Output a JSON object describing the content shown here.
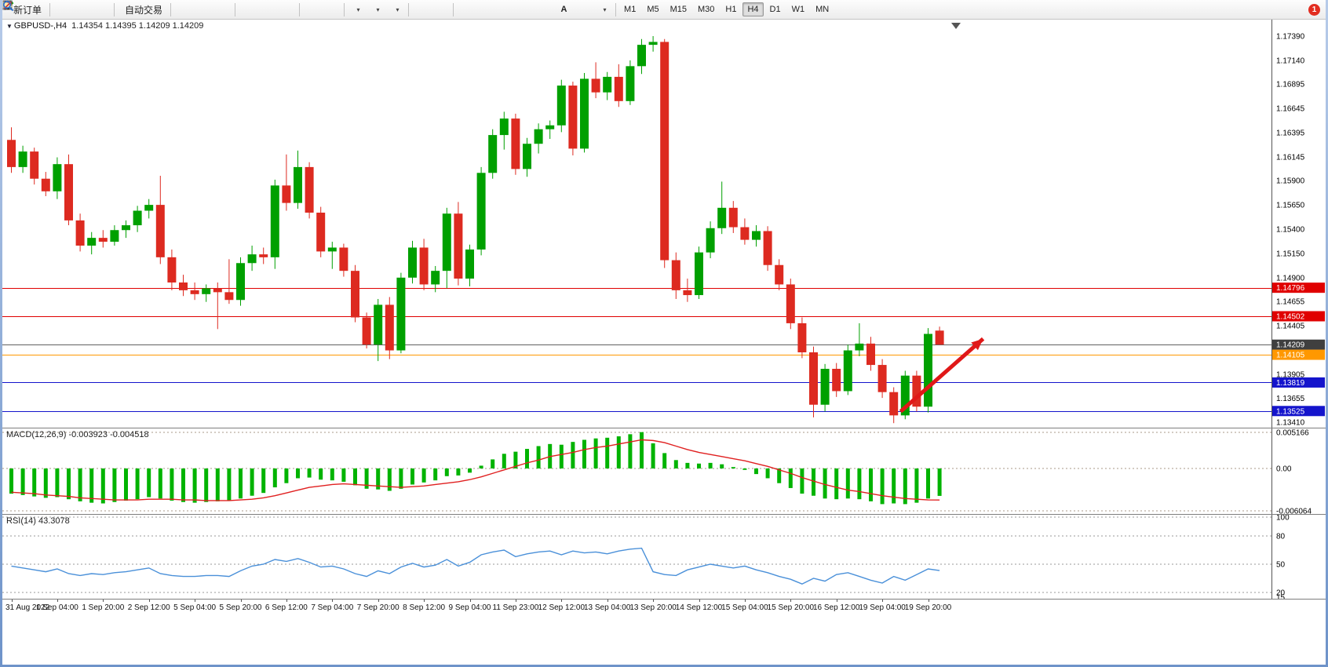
{
  "toolbar": {
    "groups": [
      {
        "items": [
          {
            "name": "new-order",
            "icon": "neworder",
            "label": "新订单"
          }
        ]
      },
      {
        "items": [
          {
            "name": "metaeditor",
            "icon": "metaeditor"
          },
          {
            "name": "community",
            "icon": "community"
          },
          {
            "name": "web-terminal",
            "icon": "web"
          }
        ]
      },
      {
        "items": [
          {
            "name": "autotrading",
            "icon": "autotrading",
            "label": "自动交易"
          }
        ]
      },
      {
        "items": [
          {
            "name": "bar-chart",
            "icon": "barchart"
          },
          {
            "name": "candlestick-chart",
            "icon": "candlechart"
          },
          {
            "name": "line-chart",
            "icon": "linechart"
          }
        ]
      },
      {
        "items": [
          {
            "name": "zoom-in",
            "icon": "zoomin"
          },
          {
            "name": "zoom-out",
            "icon": "zoomout"
          },
          {
            "name": "tile-windows",
            "icon": "tile"
          }
        ]
      },
      {
        "items": [
          {
            "name": "new-chart",
            "icon": "newchart"
          },
          {
            "name": "chart-profiles",
            "icon": "profiles"
          }
        ]
      },
      {
        "items": [
          {
            "name": "indicators",
            "icon": "indicators",
            "dropdown": true
          },
          {
            "name": "periods",
            "icon": "periods",
            "dropdown": true
          },
          {
            "name": "templates",
            "icon": "templates",
            "dropdown": true
          }
        ]
      },
      {
        "items": [
          {
            "name": "cursor",
            "icon": "cursor"
          },
          {
            "name": "crosshair",
            "icon": "crosshair"
          }
        ]
      },
      {
        "items": [
          {
            "name": "vertical-line",
            "icon": "vline"
          },
          {
            "name": "horizontal-line",
            "icon": "hline"
          },
          {
            "name": "trendline",
            "icon": "trend"
          },
          {
            "name": "equidistant-channel",
            "icon": "channel"
          },
          {
            "name": "fibonacci",
            "icon": "fibo"
          },
          {
            "name": "text",
            "icon": "textA"
          },
          {
            "name": "text-label",
            "icon": "label"
          },
          {
            "name": "arrows",
            "icon": "arrows",
            "dropdown": true
          }
        ]
      }
    ],
    "timeframes": [
      "M1",
      "M5",
      "M15",
      "M30",
      "H1",
      "H4",
      "D1",
      "W1",
      "MN"
    ],
    "active_timeframe": "H4",
    "notification_count": "1"
  },
  "chart": {
    "symbol_period": "GBPUSD-,H4",
    "ohlc_text": "1.14354 1.14395 1.14209 1.14209"
  },
  "chart_data": {
    "type": "candlestick",
    "symbol": "GBPUSD-",
    "timeframe": "H4",
    "ohlc_display": {
      "open": "1.14354",
      "high": "1.14395",
      "low": "1.14209",
      "close": "1.14209"
    },
    "up_color": "#00a000",
    "down_color": "#dd2a20",
    "price_axis": {
      "min": 1.1341,
      "max": 1.1739,
      "ticks": [
        "1.17390",
        "1.17140",
        "1.16895",
        "1.16645",
        "1.16395",
        "1.16145",
        "1.15900",
        "1.15650",
        "1.15400",
        "1.15150",
        "1.14900",
        "1.14655",
        "1.14405",
        "1.13905",
        "1.13655",
        "1.13410"
      ]
    },
    "levels": [
      {
        "price": 1.14796,
        "label": "1.14796",
        "color": "#e00000",
        "label_bg": "#e00000"
      },
      {
        "price": 1.14502,
        "label": "1.14502",
        "color": "#e00000",
        "label_bg": "#e00000"
      },
      {
        "price": 1.14209,
        "label": "1.14209",
        "color": "#606060",
        "label_bg": "#3f3f3f"
      },
      {
        "price": 1.14105,
        "label": "1.14105",
        "color": "#ff9800",
        "label_bg": "#ff9800"
      },
      {
        "price": 1.13819,
        "label": "1.13819",
        "color": "#1414cc",
        "label_bg": "#1414cc"
      },
      {
        "price": 1.13525,
        "label": "1.13525",
        "color": "#1414cc",
        "label_bg": "#1414cc"
      }
    ],
    "arrow": {
      "from_candle": 77.6,
      "from_price": 1.1352,
      "to_candle": 84.8,
      "to_price": 1.1427,
      "color": "#e01818"
    },
    "candles": [
      [
        1.1632,
        1.1645,
        1.1598,
        1.1604
      ],
      [
        1.1604,
        1.1626,
        1.1598,
        1.162
      ],
      [
        1.162,
        1.1624,
        1.1586,
        1.1592
      ],
      [
        1.1592,
        1.1599,
        1.1574,
        1.1579
      ],
      [
        1.1579,
        1.1614,
        1.1571,
        1.1607
      ],
      [
        1.1607,
        1.1617,
        1.1544,
        1.1549
      ],
      [
        1.1549,
        1.1556,
        1.1517,
        1.1523
      ],
      [
        1.1523,
        1.1537,
        1.1514,
        1.1531
      ],
      [
        1.1531,
        1.1539,
        1.1521,
        1.1527
      ],
      [
        1.1527,
        1.1544,
        1.1523,
        1.1539
      ],
      [
        1.1539,
        1.1549,
        1.1531,
        1.1544
      ],
      [
        1.1544,
        1.1564,
        1.1537,
        1.1559
      ],
      [
        1.1559,
        1.1571,
        1.1551,
        1.1565
      ],
      [
        1.1565,
        1.1595,
        1.1504,
        1.1511
      ],
      [
        1.1511,
        1.1519,
        1.1477,
        1.1485
      ],
      [
        1.1485,
        1.1493,
        1.1471,
        1.1477
      ],
      [
        1.1477,
        1.1485,
        1.1467,
        1.1473
      ],
      [
        1.1473,
        1.1483,
        1.1465,
        1.1479
      ],
      [
        1.1479,
        1.1485,
        1.1437,
        1.1475
      ],
      [
        1.1475,
        1.1509,
        1.1463,
        1.1467
      ],
      [
        1.1467,
        1.1511,
        1.1461,
        1.1505
      ],
      [
        1.1505,
        1.1523,
        1.1497,
        1.1514
      ],
      [
        1.1514,
        1.1521,
        1.1504,
        1.1511
      ],
      [
        1.1511,
        1.1591,
        1.1499,
        1.1585
      ],
      [
        1.1585,
        1.1617,
        1.1559,
        1.1567
      ],
      [
        1.1567,
        1.1621,
        1.1561,
        1.1604
      ],
      [
        1.1604,
        1.1609,
        1.1551,
        1.1557
      ],
      [
        1.1557,
        1.1563,
        1.1511,
        1.1517
      ],
      [
        1.1517,
        1.1527,
        1.1499,
        1.1521
      ],
      [
        1.1521,
        1.1525,
        1.1491,
        1.1497
      ],
      [
        1.1497,
        1.1503,
        1.1444,
        1.1449
      ],
      [
        1.1449,
        1.1454,
        1.1417,
        1.1421
      ],
      [
        1.1421,
        1.1468,
        1.1404,
        1.1462
      ],
      [
        1.1462,
        1.147,
        1.1406,
        1.1415
      ],
      [
        1.1415,
        1.1495,
        1.1412,
        1.149
      ],
      [
        1.149,
        1.1528,
        1.1484,
        1.1521
      ],
      [
        1.1521,
        1.153,
        1.1477,
        1.1483
      ],
      [
        1.1483,
        1.1502,
        1.1475,
        1.1497
      ],
      [
        1.1497,
        1.1562,
        1.1479,
        1.1556
      ],
      [
        1.1556,
        1.1568,
        1.1482,
        1.1489
      ],
      [
        1.1489,
        1.1524,
        1.1481,
        1.1519
      ],
      [
        1.1519,
        1.1604,
        1.1513,
        1.1598
      ],
      [
        1.1598,
        1.1643,
        1.1592,
        1.1637
      ],
      [
        1.1637,
        1.1661,
        1.1622,
        1.1654
      ],
      [
        1.1654,
        1.1659,
        1.1596,
        1.1602
      ],
      [
        1.1602,
        1.1634,
        1.1594,
        1.1628
      ],
      [
        1.1628,
        1.1649,
        1.1618,
        1.1643
      ],
      [
        1.1643,
        1.1652,
        1.1633,
        1.1647
      ],
      [
        1.1647,
        1.1694,
        1.164,
        1.1688
      ],
      [
        1.1688,
        1.1692,
        1.1616,
        1.1623
      ],
      [
        1.1623,
        1.1701,
        1.1619,
        1.1695
      ],
      [
        1.1695,
        1.1712,
        1.1675,
        1.1681
      ],
      [
        1.1681,
        1.1702,
        1.1673,
        1.1697
      ],
      [
        1.1697,
        1.171,
        1.1666,
        1.1672
      ],
      [
        1.1672,
        1.1714,
        1.1668,
        1.1708
      ],
      [
        1.1708,
        1.1736,
        1.17,
        1.173
      ],
      [
        1.173,
        1.1739,
        1.1723,
        1.1733
      ],
      [
        1.1733,
        1.1736,
        1.15,
        1.1508
      ],
      [
        1.1508,
        1.1516,
        1.1468,
        1.1477
      ],
      [
        1.1477,
        1.1489,
        1.1465,
        1.1472
      ],
      [
        1.1472,
        1.1522,
        1.1468,
        1.1516
      ],
      [
        1.1516,
        1.1548,
        1.151,
        1.1541
      ],
      [
        1.1541,
        1.1589,
        1.1535,
        1.1562
      ],
      [
        1.1562,
        1.1569,
        1.1536,
        1.1542
      ],
      [
        1.1542,
        1.1551,
        1.1524,
        1.1529
      ],
      [
        1.1529,
        1.1544,
        1.1522,
        1.1538
      ],
      [
        1.1538,
        1.1543,
        1.1497,
        1.1503
      ],
      [
        1.1503,
        1.1509,
        1.1477,
        1.1483
      ],
      [
        1.1483,
        1.1489,
        1.1437,
        1.1443
      ],
      [
        1.1443,
        1.1449,
        1.1407,
        1.1413
      ],
      [
        1.1413,
        1.1419,
        1.1346,
        1.1359
      ],
      [
        1.1359,
        1.1401,
        1.1352,
        1.1396
      ],
      [
        1.1396,
        1.1402,
        1.1367,
        1.1373
      ],
      [
        1.1373,
        1.1421,
        1.1369,
        1.1415
      ],
      [
        1.1415,
        1.1443,
        1.1409,
        1.1422
      ],
      [
        1.1422,
        1.1429,
        1.1394,
        1.14
      ],
      [
        1.14,
        1.1406,
        1.1366,
        1.1372
      ],
      [
        1.1372,
        1.1377,
        1.134,
        1.1348
      ],
      [
        1.1348,
        1.1394,
        1.1344,
        1.1389
      ],
      [
        1.1389,
        1.1394,
        1.1352,
        1.1357
      ],
      [
        1.1357,
        1.1438,
        1.1351,
        1.1432
      ],
      [
        1.14354,
        1.14395,
        1.14209,
        1.14209
      ]
    ],
    "time_labels": [
      "31 Aug 2022",
      "1 Sep 04:00",
      "1 Sep 20:00",
      "2 Sep 12:00",
      "5 Sep 04:00",
      "5 Sep 20:00",
      "6 Sep 12:00",
      "7 Sep 04:00",
      "7 Sep 20:00",
      "8 Sep 12:00",
      "9 Sep 04:00",
      "11 Sep 23:00",
      "12 Sep 12:00",
      "13 Sep 04:00",
      "13 Sep 20:00",
      "14 Sep 12:00",
      "15 Sep 04:00",
      "15 Sep 20:00",
      "16 Sep 12:00",
      "19 Sep 04:00",
      "19 Sep 20:00"
    ],
    "macd": {
      "title": "MACD(12,26,9) -0.003923 -0.004518",
      "histogram_color": "#00b300",
      "signal_color": "#e02020",
      "scale_values": [
        0.005166,
        0,
        -0.006064
      ],
      "scale_labels": [
        "0.005166",
        "0.00",
        "-0.006064"
      ],
      "histogram": [
        -0.0036,
        -0.0038,
        -0.004,
        -0.0042,
        -0.0041,
        -0.0044,
        -0.0047,
        -0.0049,
        -0.005,
        -0.0048,
        -0.0046,
        -0.0044,
        -0.0041,
        -0.0043,
        -0.0046,
        -0.0048,
        -0.0049,
        -0.0048,
        -0.0047,
        -0.0046,
        -0.0043,
        -0.0039,
        -0.0035,
        -0.0027,
        -0.0021,
        -0.0014,
        -0.0013,
        -0.0016,
        -0.0017,
        -0.0019,
        -0.0024,
        -0.0029,
        -0.003,
        -0.0032,
        -0.0029,
        -0.0023,
        -0.002,
        -0.0017,
        -0.0011,
        -0.001,
        -0.0006,
        0.0004,
        0.0013,
        0.0021,
        0.0024,
        0.0028,
        0.0032,
        0.0035,
        0.0034,
        0.0038,
        0.0041,
        0.0043,
        0.0044,
        0.0046,
        0.0049,
        0.0052,
        0.0036,
        0.0022,
        0.0012,
        0.0008,
        0.0007,
        0.0008,
        0.0006,
        0.0002,
        -0.0002,
        -0.0008,
        -0.0014,
        -0.0021,
        -0.0028,
        -0.0036,
        -0.0039,
        -0.0043,
        -0.0044,
        -0.0043,
        -0.0044,
        -0.0047,
        -0.0051,
        -0.005,
        -0.0051,
        -0.0049,
        -0.0043,
        -0.003923
      ],
      "signal": [
        -0.0034,
        -0.0035,
        -0.0036,
        -0.0038,
        -0.0039,
        -0.004,
        -0.0042,
        -0.0043,
        -0.0044,
        -0.0045,
        -0.0045,
        -0.0045,
        -0.0044,
        -0.0044,
        -0.0044,
        -0.0045,
        -0.0045,
        -0.0046,
        -0.0046,
        -0.0046,
        -0.0045,
        -0.0044,
        -0.0042,
        -0.0039,
        -0.0035,
        -0.0031,
        -0.0027,
        -0.0025,
        -0.0023,
        -0.0022,
        -0.0023,
        -0.0024,
        -0.0025,
        -0.0026,
        -0.0027,
        -0.0026,
        -0.0025,
        -0.0023,
        -0.0021,
        -0.0019,
        -0.0016,
        -0.0012,
        -0.0007,
        -0.0002,
        0.0003,
        0.0008,
        0.0012,
        0.0017,
        0.002,
        0.0023,
        0.0027,
        0.003,
        0.0032,
        0.0035,
        0.0038,
        0.0041,
        0.004,
        0.0037,
        0.0032,
        0.0027,
        0.0023,
        0.002,
        0.0017,
        0.0014,
        0.0011,
        0.0007,
        0.0003,
        -0.0002,
        -0.0007,
        -0.0013,
        -0.0018,
        -0.0023,
        -0.0027,
        -0.0031,
        -0.0033,
        -0.0036,
        -0.0039,
        -0.0041,
        -0.0043,
        -0.0044,
        -0.0045,
        -0.004518
      ]
    },
    "rsi": {
      "title": "RSI(14) 43.3078",
      "color": "#4a90d9",
      "levels": [
        {
          "v": 100,
          "label": "100",
          "line": true
        },
        {
          "v": 80,
          "label": "80",
          "line": true
        },
        {
          "v": 50,
          "label": "50",
          "line": true
        },
        {
          "v": 20,
          "label": "20",
          "line": true
        },
        {
          "v": 15,
          "label": "15",
          "line": false
        }
      ],
      "values": [
        48,
        46,
        44,
        42,
        45,
        40,
        38,
        40,
        39,
        41,
        42,
        44,
        46,
        40,
        38,
        37,
        37,
        38,
        38,
        37,
        43,
        48,
        50,
        55,
        53,
        56,
        52,
        47,
        48,
        45,
        40,
        37,
        43,
        40,
        47,
        51,
        47,
        49,
        55,
        48,
        52,
        60,
        63,
        65,
        58,
        61,
        63,
        64,
        60,
        64,
        62,
        63,
        61,
        64,
        66,
        67,
        42,
        39,
        38,
        44,
        47,
        50,
        48,
        46,
        48,
        44,
        41,
        37,
        34,
        29,
        35,
        32,
        39,
        41,
        37,
        33,
        30,
        37,
        33,
        39,
        45,
        43.3078
      ]
    }
  }
}
